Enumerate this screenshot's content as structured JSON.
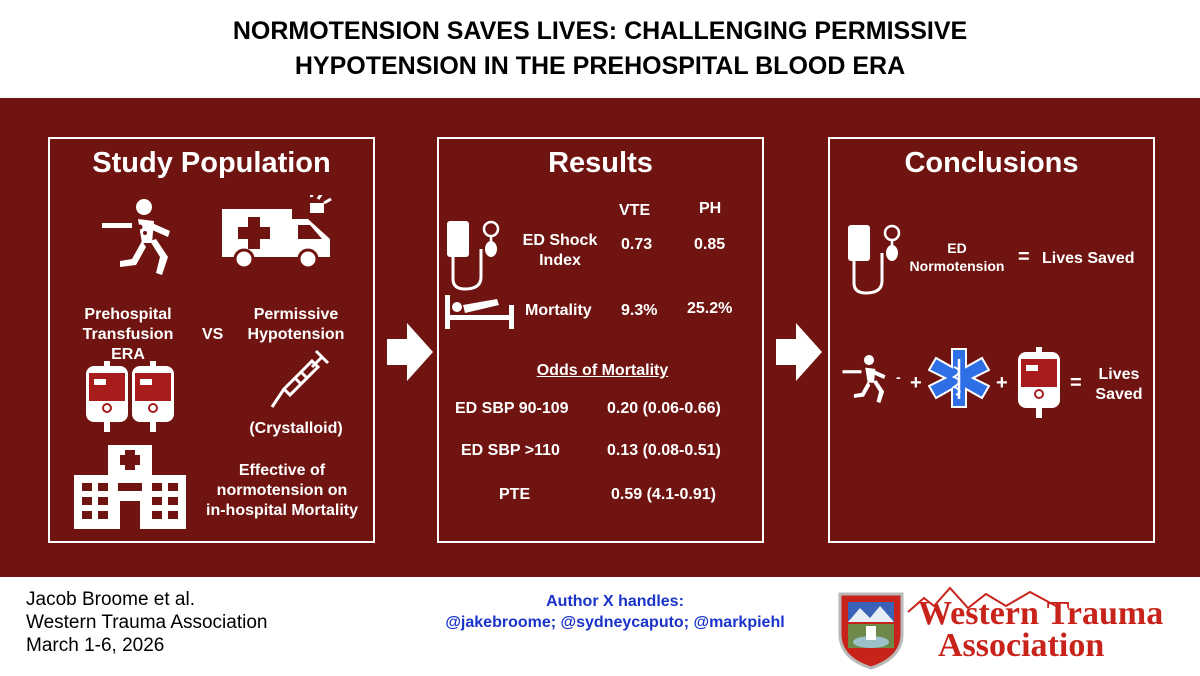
{
  "title": {
    "line1": "NORMOTENSION SAVES LIVES: CHALLENGING PERMISSIVE",
    "line2": "HYPOTENSION IN THE PREHOSPITAL BLOOD ERA"
  },
  "study_population": {
    "title": "Study Population",
    "left_label": [
      "Prehospital",
      "Transfusion",
      "ERA"
    ],
    "vs": "VS",
    "right_label": [
      "Permissive",
      "Hypotension"
    ],
    "crystalloid": "(Crystalloid)",
    "effect": [
      "Effective of",
      "normotension on",
      "in-hospital Mortality"
    ]
  },
  "results": {
    "title": "Results",
    "col1": "VTE",
    "col2": "PH",
    "rows": [
      {
        "label": [
          "ED Shock",
          "Index"
        ],
        "v1": "0.73",
        "v2": "0.85"
      },
      {
        "label": [
          "Mortality"
        ],
        "v1": "9.3%",
        "v2": "25.2%"
      }
    ],
    "odds_title": "Odds of Mortality",
    "odds": [
      {
        "label": "ED SBP 90-109",
        "value": "0.20 (0.06-0.66)"
      },
      {
        "label": "ED SBP >110",
        "value": "0.13 (0.08-0.51)"
      },
      {
        "label": "PTE",
        "value": "0.59 (4.1-0.91)"
      }
    ]
  },
  "conclusions": {
    "title": "Conclusions",
    "row1_label": [
      "ED",
      "Normotension"
    ],
    "equals": "=",
    "lives_saved": "Lives Saved",
    "plus": "+",
    "minus": "-",
    "lives_saved_2": [
      "Lives",
      "Saved"
    ]
  },
  "footer": {
    "author": "Jacob Broome et al.",
    "org": "Western Trauma Association",
    "date": "March 1-6, 2026",
    "handles_title": "Author X handles:",
    "handles": "@jakebroome; @sydneycaputo; @markpiehl",
    "logo_line1": "Western Trauma",
    "logo_line2": "Association"
  },
  "colors": {
    "band": "#6f1410",
    "handles": "#1a33c9",
    "logo_red": "#c8231b",
    "star_of_life": "#2f6fe6"
  }
}
